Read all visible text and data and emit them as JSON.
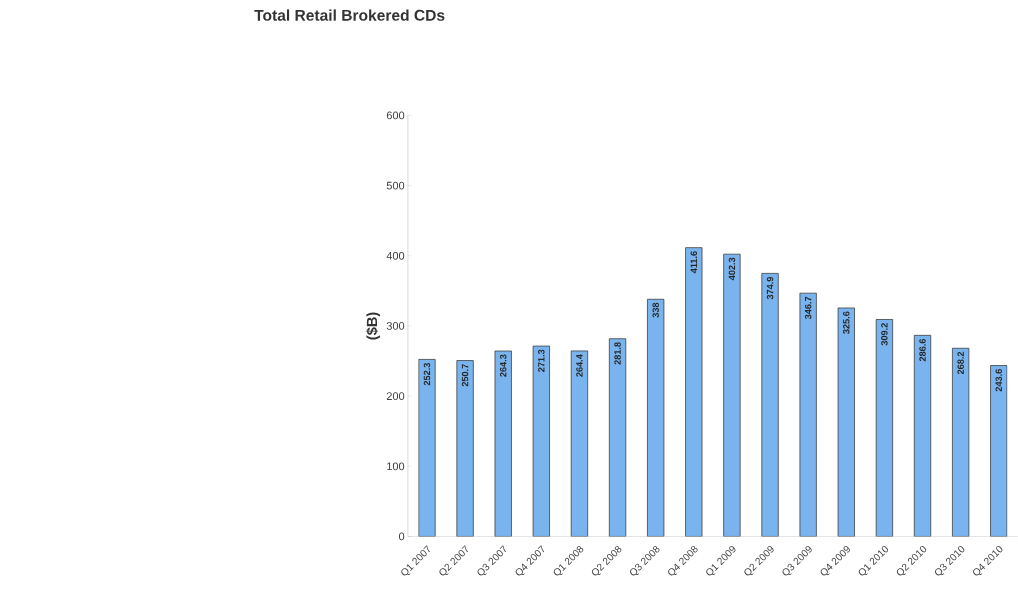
{
  "chart_data": {
    "type": "bar",
    "title": "Total Retail Brokered CDs",
    "ylabel": "($B)",
    "categories": [
      "Q1 2007",
      "Q2 2007",
      "Q3 2007",
      "Q4 2007",
      "Q1 2008",
      "Q2 2008",
      "Q3 2008",
      "Q4 2008",
      "Q1 2009",
      "Q2 2009",
      "Q3 2009",
      "Q4 2009",
      "Q1 2010",
      "Q2 2010",
      "Q3 2010",
      "Q4 2010"
    ],
    "values": [
      252.3,
      250.7,
      264.3,
      271.3,
      264.4,
      281.8,
      338,
      411.6,
      402.3,
      374.9,
      346.7,
      325.6,
      309.2,
      286.6,
      268.2,
      243.6
    ],
    "color": "#7ab4ee",
    "data_labels": true,
    "ylim": [
      0,
      600
    ],
    "yticks": [
      0,
      100,
      200,
      300,
      400,
      500,
      600
    ]
  }
}
